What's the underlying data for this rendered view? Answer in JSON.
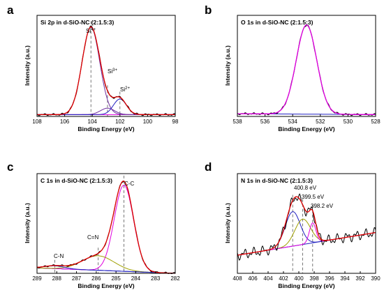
{
  "figure": {
    "panels": [
      {
        "letter": "a",
        "title": "Si 2p in d-SiO-NC (2:1.5:3)",
        "xlabel": "Binding Energy (eV)",
        "ylabel": "Intensity (a.u.)",
        "peaks": [
          {
            "base": "Si",
            "sup": "4+"
          },
          {
            "base": "Si",
            "sup": "3+"
          },
          {
            "base": "Si",
            "sup": "2+"
          }
        ]
      },
      {
        "letter": "b",
        "title": "O 1s in d-SiO-NC (2:1.5:3)",
        "xlabel": "Binding Energy (eV)",
        "ylabel": "Intensity (a.u.)"
      },
      {
        "letter": "c",
        "title": "C 1s in d-SiO-NC (2:1.5:3)",
        "xlabel": "Binding Energy (eV)",
        "ylabel": "Intensity (a.u.)",
        "peaks": [
          "C-C",
          "C=N",
          "C-N"
        ]
      },
      {
        "letter": "d",
        "title": "N 1s in d-SiO-NC (2:1.5:3)",
        "xlabel": "Binding Energy (eV)",
        "ylabel": "Intensity (a.u.)",
        "peaks": [
          "400.8 eV",
          "399.5 eV",
          "398.2 eV"
        ]
      }
    ]
  },
  "chart_data": [
    {
      "type": "line",
      "title": "Si 2p in d-SiO-NC (2:1.5:3)",
      "xlabel": "Binding Energy (eV)",
      "ylabel": "Intensity (a.u.)",
      "xlim": [
        108,
        98
      ],
      "xticks": [
        108,
        106,
        104,
        102,
        100,
        98
      ],
      "ylim": [
        0,
        1.1
      ],
      "reversed_x": true,
      "y_ticks_shown": false,
      "colors": {
        "raw": "#000000",
        "envelope": "#e00000",
        "background": "#e000e0",
        "c1": "#7030a0",
        "c2": "#7030a0",
        "c3": "#2020c0"
      },
      "background": {
        "x": [
          108,
          98
        ],
        "y": [
          0.02,
          0.02
        ]
      },
      "components": [
        {
          "key": "c1",
          "center": 104.1,
          "height": 0.95,
          "fwhm": 1.5
        },
        {
          "key": "c2",
          "center": 102.9,
          "height": 0.07,
          "fwhm": 1.2
        },
        {
          "key": "c3",
          "center": 102.0,
          "height": 0.17,
          "fwhm": 1.1
        }
      ],
      "peak_markers": [
        104.1,
        102.9,
        102.0
      ],
      "noise": 0.012
    },
    {
      "type": "line",
      "title": "O 1s in d-SiO-NC (2:1.5:3)",
      "xlabel": "Binding Energy (eV)",
      "ylabel": "Intensity (a.u.)",
      "xlim": [
        538,
        528
      ],
      "xticks": [
        538,
        536,
        534,
        532,
        530,
        528
      ],
      "ylim": [
        0,
        1.1
      ],
      "reversed_x": true,
      "y_ticks_shown": false,
      "colors": {
        "raw": "#000000",
        "envelope": "#e000e0",
        "background": "#2020c0",
        "c1": "#e000e0"
      },
      "background": {
        "x": [
          538,
          528
        ],
        "y": [
          0.03,
          0.02
        ]
      },
      "components": [
        {
          "key": "c1",
          "center": 533.0,
          "height": 0.97,
          "fwhm": 1.75
        }
      ],
      "peak_markers": [],
      "noise": 0.012
    },
    {
      "type": "line",
      "title": "C 1s in d-SiO-NC (2:1.5:3)",
      "xlabel": "Binding Energy (eV)",
      "ylabel": "Intensity (a.u.)",
      "xlim": [
        289,
        282
      ],
      "xticks": [
        289,
        288,
        287,
        286,
        285,
        284,
        283,
        282
      ],
      "ylim": [
        0,
        1.1
      ],
      "reversed_x": true,
      "y_ticks_shown": false,
      "colors": {
        "raw": "#000000",
        "envelope": "#e00000",
        "background": "#2020c0",
        "c1": "#e000e0",
        "c2": "#a0a000",
        "c3": "#2020c0"
      },
      "background": {
        "x": [
          289,
          282
        ],
        "y": [
          0.06,
          0.0
        ]
      },
      "components": [
        {
          "key": "c1",
          "center": 284.6,
          "height": 0.95,
          "fwhm": 1.15
        },
        {
          "key": "c2",
          "center": 285.9,
          "height": 0.16,
          "fwhm": 1.9
        },
        {
          "key": "c3",
          "center": 288.1,
          "height": 0.03,
          "fwhm": 1.2
        }
      ],
      "peak_markers": [
        284.6,
        285.9,
        288.1
      ],
      "noise": 0.01
    },
    {
      "type": "line",
      "title": "N 1s in d-SiO-NC (2:1.5:3)",
      "xlabel": "Binding Energy (eV)",
      "ylabel": "Intensity (a.u.)",
      "xlim": [
        408,
        390
      ],
      "xticks": [
        408,
        406,
        404,
        402,
        400,
        398,
        396,
        394,
        392,
        390
      ],
      "ylim": [
        0,
        1.1
      ],
      "reversed_x": true,
      "y_ticks_shown": false,
      "colors": {
        "raw": "#000000",
        "envelope": "#e00000",
        "background": "#2020c0",
        "c1": "#2020c0",
        "c2": "#a0a000",
        "c3": "#e000e0"
      },
      "background": {
        "x": [
          408,
          390
        ],
        "y": [
          0.2,
          0.45
        ]
      },
      "components": [
        {
          "key": "c1",
          "center": 400.8,
          "height": 0.38,
          "fwhm": 2.3
        },
        {
          "key": "c2",
          "center": 399.5,
          "height": 0.28,
          "fwhm": 2.4
        },
        {
          "key": "c3",
          "center": 398.2,
          "height": 0.22,
          "fwhm": 1.0
        }
      ],
      "peak_markers": [
        400.8,
        399.5,
        398.2
      ],
      "noise": 0.06
    }
  ]
}
